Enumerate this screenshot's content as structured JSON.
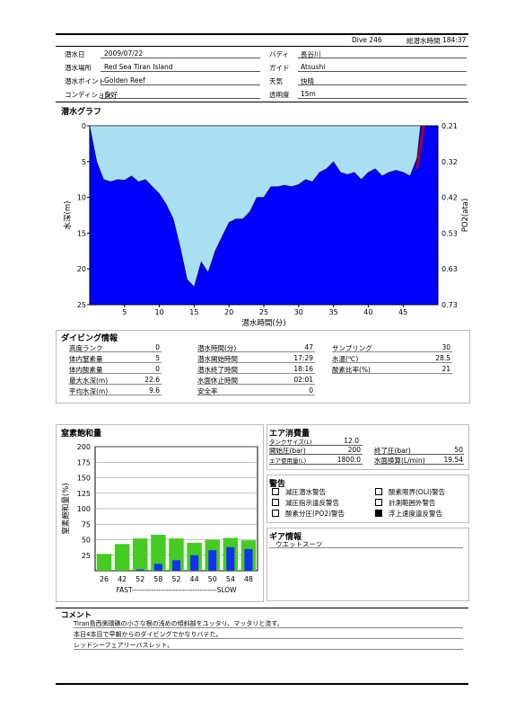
{
  "header": {
    "dive_no": "Dive 246",
    "total_label": "総潜水時間",
    "total_time": "184:37"
  },
  "info": {
    "rows": [
      {
        "l1": "潜水日",
        "v1": "2009/07/22",
        "l2": "バディ",
        "v2": "長谷川"
      },
      {
        "l1": "潜水場所",
        "v1": "Red Sea Tiran Island",
        "l2": "ガイド",
        "v2": "Atsushi"
      },
      {
        "l1": "潜水ポイント",
        "v1": "Golden Reef",
        "l2": "天気",
        "v2": "快晴"
      },
      {
        "l1": "コンディション",
        "v1": "良好",
        "l2": "透明度",
        "v2": "15m"
      }
    ]
  },
  "graph": {
    "title": "潜水グラフ",
    "ylabel": "水深(m)",
    "ylabel_right": "PO2(ata)",
    "xlabel": "潜水時間(分)",
    "y_ticks": [
      "0",
      "5",
      "10",
      "15",
      "20",
      "25"
    ],
    "y_right_ticks": [
      "0.21",
      "0.32",
      "0.42",
      "0.53",
      "0.63",
      "0.73"
    ],
    "x_ticks": [
      "5",
      "10",
      "15",
      "20",
      "25",
      "30",
      "35",
      "40",
      "45"
    ]
  },
  "chart_data": [
    {
      "type": "area",
      "xlabel": "潜水時間(分)",
      "ylabel": "水深(m)",
      "ylabel_right": "PO2(ata)",
      "xlim": [
        0,
        50
      ],
      "ylim": [
        25,
        0
      ],
      "y2lim": [
        0.73,
        0.21
      ],
      "x": [
        0,
        1,
        2,
        3,
        4,
        5,
        6,
        7,
        8,
        9,
        10,
        11,
        12,
        13,
        14,
        15,
        16,
        17,
        18,
        19,
        20,
        21,
        22,
        23,
        24,
        25,
        26,
        27,
        28,
        29,
        30,
        31,
        32,
        33,
        34,
        35,
        36,
        37,
        38,
        39,
        40,
        41,
        42,
        43,
        44,
        45,
        46,
        47,
        47.5
      ],
      "depth": [
        0,
        5,
        7.5,
        7.8,
        7.5,
        7.6,
        7,
        7.8,
        7.5,
        8.5,
        9.5,
        11,
        13,
        17,
        21.5,
        22.5,
        19,
        20.5,
        17.5,
        15.5,
        13.5,
        13,
        13,
        12,
        10,
        10,
        8.5,
        8.5,
        8.3,
        8.5,
        8.2,
        7.5,
        7.8,
        6.5,
        6,
        5,
        6.5,
        6.8,
        6.5,
        7.5,
        6.5,
        6,
        7,
        6.5,
        6.2,
        6.5,
        7,
        4.5,
        0
      ],
      "ascent_warning_segment": {
        "x": [
          47,
          48
        ],
        "depth": [
          6,
          0
        ]
      }
    },
    {
      "type": "bar",
      "title": "窒素飽和量",
      "ylabel": "窒素飽和量(%)",
      "ylim": [
        0,
        200
      ],
      "y_ticks": [
        "200",
        "175",
        "150",
        "125",
        "100",
        "75",
        "50",
        "25"
      ],
      "categories": [
        "26",
        "42",
        "52",
        "58",
        "52",
        "44",
        "50",
        "54",
        "48"
      ],
      "x_axis_label": "FAST-----------------------------------SLOW",
      "series": [
        {
          "values": [
            27,
            43,
            52,
            58,
            52,
            45,
            50,
            53,
            49
          ]
        },
        {
          "values": [
            0,
            0,
            2,
            11,
            17,
            25,
            33,
            38,
            35
          ]
        }
      ]
    }
  ],
  "diving_info": {
    "title": "ダイビング情報",
    "col1": [
      {
        "label": "高度ランク",
        "value": "0"
      },
      {
        "label": "体内窒素量",
        "value": "5"
      },
      {
        "label": "体内酸素量",
        "value": "0"
      },
      {
        "label": "最大水深(m)",
        "value": "22.6"
      },
      {
        "label": "平均水深(m)",
        "value": "9.6"
      }
    ],
    "col2": [
      {
        "label": "潜水時間(分)",
        "value": "47"
      },
      {
        "label": "潜水開始時間",
        "value": "17:29"
      },
      {
        "label": "潜水終了時間",
        "value": "18:16"
      },
      {
        "label": "水面休止時間",
        "value": "02:01"
      },
      {
        "label": "安全率",
        "value": "0"
      }
    ],
    "col3": [
      {
        "label": "サンプリング",
        "value": "30"
      },
      {
        "label": "水温(℃)",
        "value": "28.5"
      },
      {
        "label": "酸素比率(%)",
        "value": "21"
      }
    ]
  },
  "air": {
    "title": "エア消費量",
    "tank_label": "タンクサイズ(L)",
    "tank_value": "12.0",
    "start_label": "開始圧(bar)",
    "start_value": "200",
    "end_label": "終了圧(bar)",
    "end_value": "50",
    "used_label": "エア使用量(L)",
    "used_value": "1800.0",
    "surface_label": "水面換算(L/min)",
    "surface_value": "19.54"
  },
  "warnings": {
    "title": "警告",
    "items": [
      {
        "label": "減圧潜水警告",
        "checked": false
      },
      {
        "label": "酸素限界(OLI)警告",
        "checked": false
      },
      {
        "label": "減圧指示違反警告",
        "checked": false
      },
      {
        "label": "計測範囲外警告",
        "checked": false
      },
      {
        "label": "酸素分圧(PO2)警告",
        "checked": false
      },
      {
        "label": "浮上速度違反警告",
        "checked": true
      }
    ]
  },
  "gear": {
    "title": "ギア情報",
    "value": "ウエットスーツ"
  },
  "comment": {
    "title": "コメント",
    "lines": [
      "Tiran島西側環礁の小さな根の浅めの傾斜部をユッタリ、マッタリと流す。",
      "本日4本目で早朝からのダイビングでかなりバテた。",
      "レッドシーフェアリーバスレット。"
    ]
  },
  "colors": {
    "profile_fill": "#a9dff0",
    "plot_bg": "#0000ff",
    "ascent_line": "#c00000",
    "bar_green": "#44cc22",
    "bar_blue": "#1133ee"
  }
}
